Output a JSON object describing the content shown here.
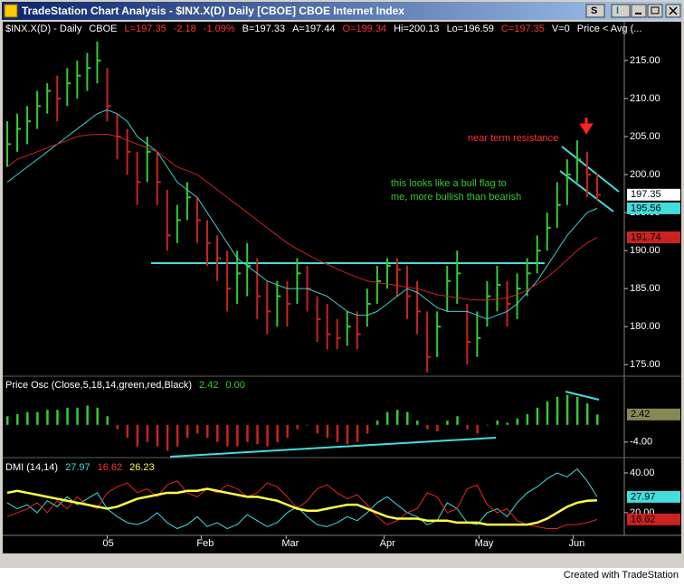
{
  "window": {
    "title": "TradeStation Chart Analysis - $INX.X(D)  Daily  [CBOE] CBOE Internet Index",
    "toolbar": [
      "S",
      "I"
    ],
    "footer": "Created with TradeStation"
  },
  "chart_data": [
    {
      "type": "hlc",
      "header": [
        {
          "text": "$INX.X(D) - Daily",
          "color": "#ffffff"
        },
        {
          "text": "CBOE",
          "color": "#ffffff"
        },
        {
          "text": "L=197.35",
          "color": "#ff3333"
        },
        {
          "text": "-2.18",
          "color": "#ff3333"
        },
        {
          "text": "-1.09%",
          "color": "#ff3333"
        },
        {
          "text": "B=197.33",
          "color": "#ffffff"
        },
        {
          "text": "A=197.44",
          "color": "#ffffff"
        },
        {
          "text": "O=199.34",
          "color": "#ff3333"
        },
        {
          "text": "Hi=200.13",
          "color": "#ffffff"
        },
        {
          "text": "Lo=196.59",
          "color": "#ffffff"
        },
        {
          "text": "C=197.35",
          "color": "#ff3333"
        },
        {
          "text": "V=0",
          "color": "#ffffff"
        },
        {
          "text": "Price < Avg  (...",
          "color": "#ffffff"
        }
      ],
      "annotations": [
        {
          "text": "near term resistance",
          "color": "#ff3333"
        },
        {
          "text": "this looks like a bull flag to",
          "color": "#33cc33"
        },
        {
          "text": "me, more bullish than bearish",
          "color": "#33cc33"
        }
      ],
      "xlim": [
        0,
        59
      ],
      "high": [
        207,
        208,
        209,
        211,
        212,
        213,
        214,
        215,
        216,
        217.5,
        214,
        208,
        206,
        203,
        205,
        203,
        198,
        196,
        199,
        197,
        194,
        192,
        190,
        190,
        191,
        189,
        186,
        186,
        186,
        189,
        188,
        184,
        183,
        181,
        182,
        182,
        185,
        188,
        189,
        189,
        188,
        186,
        182,
        182,
        188,
        190,
        183,
        182,
        186,
        188,
        186,
        187,
        189,
        192,
        195,
        199,
        202,
        204.5,
        203,
        200.13
      ],
      "low": [
        201,
        203,
        204,
        206,
        208,
        207,
        209,
        210,
        211,
        212,
        207,
        202,
        200,
        196,
        199,
        196,
        190,
        191,
        194,
        191,
        188,
        186,
        182,
        183,
        184,
        181,
        179,
        180,
        180,
        183,
        182,
        178,
        177,
        177,
        177.5,
        177,
        180,
        183,
        185,
        184,
        181,
        179,
        174,
        176,
        182,
        183,
        175,
        176,
        180,
        182,
        180,
        181,
        184,
        187,
        190,
        193,
        196,
        199,
        197,
        196.59
      ],
      "close": [
        204,
        206,
        207,
        209,
        211,
        210,
        212,
        213,
        214,
        215,
        209,
        205,
        203,
        199,
        203,
        199,
        192,
        194,
        197,
        194,
        191,
        189,
        185,
        187,
        188,
        184,
        182,
        184,
        183,
        187,
        185,
        181,
        179,
        178.5,
        180,
        179,
        183,
        186,
        188,
        187.5,
        184,
        182,
        176,
        180,
        186,
        187,
        178,
        178.5,
        184,
        185.5,
        183,
        185,
        187,
        190,
        193,
        196,
        200,
        202,
        200,
        197.35
      ],
      "up_color": "#33cc33",
      "down_color": "#cc2222",
      "averages": [
        {
          "color": "#44cccc",
          "values": [
            199,
            200,
            201,
            202,
            203,
            204,
            205,
            206,
            207,
            208,
            208.5,
            208,
            207,
            205,
            204,
            203,
            201,
            199,
            198,
            197,
            195,
            193,
            191,
            189,
            188,
            187,
            186,
            185.5,
            185,
            185,
            185,
            184.5,
            184,
            183,
            182,
            181.5,
            181.5,
            182,
            183,
            184,
            185,
            184.5,
            183.5,
            182.5,
            182,
            182,
            182,
            181.5,
            181,
            181.5,
            182,
            183,
            184.5,
            186,
            188,
            190,
            192,
            193.5,
            195,
            195.56
          ]
        },
        {
          "color": "#cc2222",
          "values": [
            201,
            202,
            202.5,
            203,
            203.5,
            204,
            204.5,
            205,
            205.2,
            205.3,
            205.3,
            205,
            204.5,
            204,
            203.5,
            203,
            202,
            201,
            200.5,
            200,
            199,
            198,
            197,
            196,
            195,
            194,
            193,
            192,
            191,
            190.2,
            189.5,
            188.8,
            188.2,
            187.6,
            187,
            186.5,
            186,
            185.8,
            185.6,
            185.4,
            185.2,
            185,
            184.6,
            184.2,
            184,
            183.8,
            183.6,
            183.5,
            183.5,
            183.6,
            183.8,
            184.2,
            184.8,
            185.6,
            186.5,
            187.6,
            188.8,
            190,
            191,
            191.74
          ]
        }
      ],
      "ylim": [
        173.6,
        218.2
      ],
      "yticks": [
        {
          "value": 175,
          "label": "175.00"
        },
        {
          "value": 180,
          "label": "180.00"
        },
        {
          "value": 185,
          "label": "185.00"
        },
        {
          "value": 190,
          "label": "190.00"
        },
        {
          "value": 195,
          "label": "195.00"
        },
        {
          "value": 200,
          "label": "200.00"
        },
        {
          "value": 205,
          "label": "205.00"
        },
        {
          "value": 210,
          "label": "210.00"
        },
        {
          "value": 215,
          "label": "215.00"
        }
      ],
      "markers": [
        {
          "value": 197.35,
          "label": "197.35",
          "color": "#ffffff"
        },
        {
          "value": 195.56,
          "label": "195.56",
          "color": "#44dddd"
        },
        {
          "value": 191.74,
          "label": "191.74",
          "color": "#cc2222"
        }
      ]
    },
    {
      "type": "bar",
      "header": [
        {
          "text": "Price Osc  (Close,5,18,14,green,red,Black)",
          "color": "#ffffff"
        },
        {
          "text": "2.42",
          "color": "#33cc33"
        },
        {
          "text": "0.00",
          "color": "#33cc33"
        }
      ],
      "xlim": [
        0,
        59
      ],
      "values": [
        2,
        2.5,
        3,
        3,
        3.5,
        3.5,
        4,
        4,
        4.5,
        4,
        2,
        -1,
        -3,
        -5,
        -4,
        -5,
        -6,
        -5,
        -3,
        -2,
        -3,
        -4,
        -5,
        -5,
        -4,
        -4.5,
        -5,
        -4,
        -3,
        -1,
        0,
        -2,
        -3,
        -4,
        -4.5,
        -4,
        -2,
        1,
        3,
        3.5,
        3,
        1,
        -1,
        -1.5,
        1,
        2,
        -1,
        -2,
        0,
        1,
        0.5,
        1.5,
        2.5,
        4,
        5.5,
        6.5,
        7,
        6.5,
        5,
        2.42
      ],
      "positive_color": "#33cc33",
      "negative_color": "#cc2222",
      "ylim": [
        -7.4,
        10.9
      ],
      "yticks": [
        {
          "value": -4,
          "label": "-4.00"
        }
      ],
      "markers": [
        {
          "value": 2.42,
          "label": "2.42",
          "color": "#888855"
        }
      ]
    },
    {
      "type": "line",
      "header": [
        {
          "text": "DMI  (14,14)",
          "color": "#ffffff"
        },
        {
          "text": "27.97",
          "color": "#44dddd"
        },
        {
          "text": "16.62",
          "color": "#ff3333"
        },
        {
          "text": "26.23",
          "color": "#ffff44"
        }
      ],
      "xlim": [
        0,
        59
      ],
      "xticks": [
        {
          "value": 10,
          "label": "05"
        },
        {
          "value": 19.4,
          "label": "Feb"
        },
        {
          "value": 27.9,
          "label": "Mar"
        },
        {
          "value": 37.7,
          "label": "Apr"
        },
        {
          "value": 47.2,
          "label": "May"
        },
        {
          "value": 56.6,
          "label": "Jun"
        }
      ],
      "series": [
        {
          "color": "#44dddd",
          "width": 1,
          "values": [
            25,
            22,
            24,
            20,
            26,
            23,
            28,
            24,
            27,
            30,
            22,
            18,
            15,
            14,
            16,
            20,
            15,
            12,
            14,
            18,
            13,
            15,
            12,
            14,
            19,
            16,
            13,
            15,
            20,
            23,
            18,
            14,
            13,
            15,
            18,
            16,
            20,
            25,
            28,
            24,
            20,
            18,
            14,
            16,
            25,
            22,
            15,
            14,
            20,
            22,
            18,
            25,
            30,
            33,
            37,
            40,
            38,
            42,
            36,
            27.97
          ]
        },
        {
          "color": "#ee2222",
          "width": 1,
          "values": [
            18,
            20,
            22,
            25,
            20,
            26,
            22,
            28,
            24,
            22,
            30,
            33,
            35,
            30,
            32,
            28,
            34,
            36,
            30,
            28,
            32,
            30,
            34,
            32,
            28,
            30,
            35,
            33,
            28,
            22,
            26,
            32,
            34,
            30,
            27,
            29,
            24,
            18,
            14,
            16,
            20,
            22,
            30,
            28,
            20,
            22,
            32,
            34,
            24,
            20,
            22,
            16,
            14,
            13,
            12,
            12,
            14,
            14,
            15,
            16.62
          ]
        },
        {
          "color": "#ffff44",
          "width": 2.5,
          "values": [
            30,
            31,
            30,
            29,
            28,
            27,
            26,
            25,
            24,
            23,
            22,
            23,
            25,
            27,
            28,
            29,
            30,
            30,
            31,
            31,
            32,
            31,
            30,
            29,
            28,
            28,
            27,
            26,
            24,
            22,
            21,
            21,
            22,
            23,
            24,
            24,
            22,
            20,
            18,
            17,
            17,
            17,
            16,
            16,
            16,
            15,
            15,
            15,
            14,
            14,
            14,
            14,
            14,
            15,
            17,
            20,
            23,
            25,
            26,
            26.23
          ]
        }
      ],
      "ylim": [
        8.6,
        46.8
      ],
      "yticks": [
        {
          "value": 40,
          "label": "40.00"
        },
        {
          "value": 20,
          "label": "20.00"
        }
      ],
      "markers": [
        {
          "value": 27.97,
          "label": "27.97",
          "color": "#44dddd"
        },
        {
          "value": 16.62,
          "label": "16.62",
          "color": "#cc2222"
        }
      ]
    }
  ]
}
